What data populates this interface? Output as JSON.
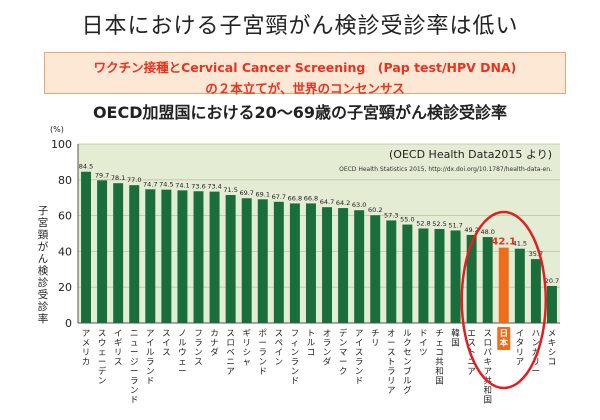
{
  "title": "日本における子宮頸がん検診受診率は低い",
  "banner": {
    "line1": "ワクチン接種とCervical Cancer Screening　(Pap test/HPV DNA)",
    "line2": "の２本立てが、世界のコンセンサス"
  },
  "colors": {
    "bar": "#1a6e3c",
    "highlight_bar": "#ee6d1a",
    "highlight_label_bg": "#ee6d1a",
    "plot_bg": "#e4ecd3",
    "ellipse": "#e02020",
    "banner_text": "#e8331f"
  },
  "chart_data": {
    "type": "bar",
    "title": "OECD加盟国における20〜69歳の子宮頸がん検診受診率",
    "ylabel": "子宮頸がん検診受診率",
    "yunit": "(%)",
    "ylim": [
      0,
      100
    ],
    "yticks": [
      0,
      20,
      40,
      60,
      80,
      100
    ],
    "grid": true,
    "source_title": "(OECD Health Data2015 より)",
    "source_note": "OECD Health Statistics 2015, http://dx.doi.org/10.1787/health-data-en.",
    "highlight_category": "日本",
    "categories": [
      "アメリカ",
      "スウェーデン",
      "イギリス",
      "ニュージーランド",
      "アイルランド",
      "スイス",
      "ノルウェー",
      "フランス",
      "カナダ",
      "スロベニア",
      "ギリシャ",
      "ポーランド",
      "スペイン",
      "フィンランド",
      "トルコ",
      "オランダ",
      "デンマーク",
      "アイスランド",
      "チリ",
      "オーストラリア",
      "ルクセンブルグ",
      "ドイツ",
      "チェコ共和国",
      "韓国",
      "エストニア",
      "スロバキア共和国",
      "日本",
      "イタリア",
      "ハンガリー",
      "メキシコ"
    ],
    "values": [
      84.5,
      79.7,
      78.1,
      77.0,
      74.7,
      74.5,
      74.1,
      73.6,
      73.4,
      71.5,
      69.7,
      69.1,
      67.7,
      66.8,
      66.8,
      64.7,
      64.2,
      63.0,
      60.2,
      57.3,
      55.0,
      52.8,
      52.5,
      51.7,
      49.2,
      48.0,
      42.1,
      41.5,
      35.7,
      20.7
    ],
    "value_labels": [
      "84.5",
      "79.7",
      "78.1",
      "77.0",
      "74.7",
      "74.5",
      "74.1",
      "73.6",
      "73.4",
      "71.5",
      "69.7",
      "69.1",
      "67.7",
      "66.8",
      "66.8",
      "64.7",
      "64.2",
      "63.0",
      "60.2",
      "57.3",
      "55.0",
      "52.8",
      "52.5",
      "51.7",
      "49.2",
      "48.0",
      "42.1",
      "41.5",
      "35.7",
      "20.7"
    ]
  }
}
